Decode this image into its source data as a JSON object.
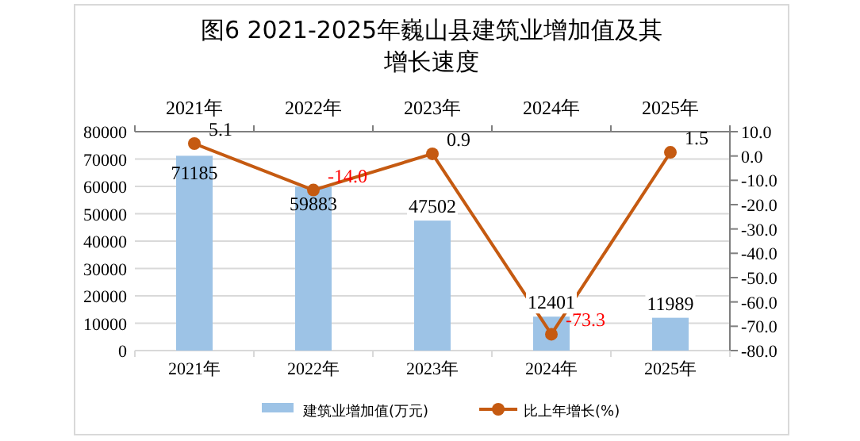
{
  "chart_data": {
    "type": "bar",
    "title": "图6  2021-2025年巍山县建筑业增加值及其增长速度",
    "categories": [
      "2021年",
      "2022年",
      "2023年",
      "2024年",
      "2025年"
    ],
    "series": [
      {
        "name": "建筑业增加值(万元)",
        "color": "#9dc3e6",
        "values": [
          71185,
          59883,
          47502,
          12401,
          11989
        ],
        "value_labels": [
          "71185",
          "59883",
          "47502",
          "12401",
          "11989"
        ]
      },
      {
        "name": "比上年增长(%)",
        "type": "line",
        "axis": "y2",
        "color": "#c55a11",
        "marker": "circle",
        "values": [
          5.1,
          -14.0,
          0.9,
          -73.3,
          1.5
        ],
        "value_labels": [
          "5.1",
          "-14.0",
          "0.9",
          "-73.3",
          "1.5"
        ]
      }
    ],
    "ylim": [
      0,
      80000
    ],
    "yticks": [
      0,
      10000,
      20000,
      30000,
      40000,
      50000,
      60000,
      70000,
      80000
    ],
    "y2lim": [
      -80,
      10
    ],
    "y2ticks": [
      {
        "value": -80,
        "label": "-80.0"
      },
      {
        "value": -70,
        "label": "-70.0"
      },
      {
        "value": -60,
        "label": "-60.0"
      },
      {
        "value": -50,
        "label": "-50.0"
      },
      {
        "value": -40,
        "label": "-40.0"
      },
      {
        "value": -30,
        "label": "-30.0"
      },
      {
        "value": -20,
        "label": "-20.0"
      },
      {
        "value": -10,
        "label": "-10.0"
      },
      {
        "value": 0,
        "label": "0.0"
      },
      {
        "value": 10,
        "label": "10.0"
      }
    ],
    "grid": "y",
    "legend": "bottom"
  }
}
